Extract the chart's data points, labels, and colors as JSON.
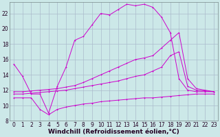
{
  "background_color": "#cce8e8",
  "grid_color": "#aabbcc",
  "line_color": "#cc00cc",
  "xlim": [
    -0.5,
    23.5
  ],
  "ylim": [
    8,
    23.5
  ],
  "xlabel": "Windchill (Refroidissement éolien,°C)",
  "xlabel_fontsize": 6.5,
  "xticks": [
    0,
    1,
    2,
    3,
    4,
    5,
    6,
    7,
    8,
    9,
    10,
    11,
    12,
    13,
    14,
    15,
    16,
    17,
    18,
    19,
    20,
    21,
    22,
    23
  ],
  "yticks": [
    8,
    10,
    12,
    14,
    16,
    18,
    20,
    22
  ],
  "tick_fontsize": 5.5,
  "line1_x": [
    0,
    1,
    2,
    3,
    4,
    5,
    6,
    7,
    8,
    9,
    10,
    11,
    12,
    13,
    14,
    15,
    16,
    17,
    18,
    19,
    20,
    21,
    22,
    23
  ],
  "line1_y": [
    15.4,
    13.8,
    11.5,
    11.5,
    9.0,
    12.5,
    15.0,
    18.5,
    19.0,
    20.5,
    22.0,
    21.8,
    22.5,
    23.2,
    23.0,
    23.2,
    22.8,
    21.5,
    19.5,
    13.5,
    12.0,
    11.8,
    11.8,
    11.8
  ],
  "line2_x": [
    0,
    1,
    2,
    3,
    4,
    5,
    6,
    7,
    8,
    9,
    10,
    11,
    12,
    13,
    14,
    15,
    16,
    17,
    18,
    19,
    20,
    21,
    22,
    23
  ],
  "line2_y": [
    11.8,
    11.8,
    11.9,
    12.0,
    12.1,
    12.2,
    12.4,
    12.6,
    13.0,
    13.5,
    14.0,
    14.5,
    15.0,
    15.5,
    16.0,
    16.2,
    16.5,
    17.5,
    18.5,
    19.5,
    13.5,
    12.2,
    12.0,
    11.8
  ],
  "line3_x": [
    0,
    1,
    2,
    3,
    4,
    5,
    6,
    7,
    8,
    9,
    10,
    11,
    12,
    13,
    14,
    15,
    16,
    17,
    18,
    19,
    20,
    21,
    22,
    23
  ],
  "line3_y": [
    11.5,
    11.5,
    11.6,
    11.7,
    11.8,
    11.9,
    12.0,
    12.2,
    12.4,
    12.6,
    12.8,
    13.0,
    13.2,
    13.5,
    13.8,
    14.0,
    14.5,
    15.0,
    16.5,
    17.0,
    12.5,
    12.0,
    11.9,
    11.8
  ],
  "line4_x": [
    0,
    1,
    2,
    3,
    4,
    5,
    6,
    7,
    8,
    9,
    10,
    11,
    12,
    13,
    14,
    15,
    16,
    17,
    18,
    19,
    20,
    21,
    22,
    23
  ],
  "line4_y": [
    11.0,
    11.0,
    11.0,
    9.5,
    8.8,
    9.5,
    9.8,
    10.0,
    10.2,
    10.3,
    10.5,
    10.6,
    10.7,
    10.8,
    10.9,
    11.0,
    11.0,
    11.1,
    11.2,
    11.3,
    11.4,
    11.5,
    11.5,
    11.5
  ]
}
